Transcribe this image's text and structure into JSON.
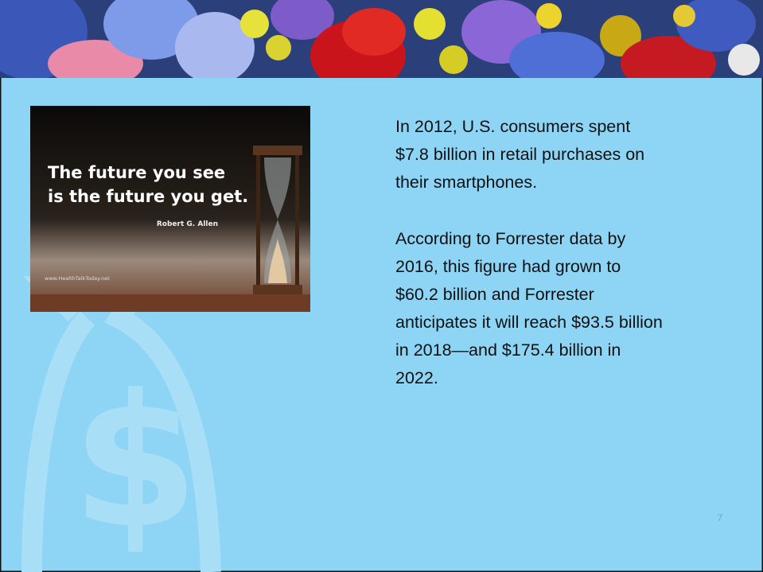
{
  "image": {
    "quote_lines": [
      "The future you see",
      "is the future you get."
    ],
    "author": "Robert G. Allen",
    "website": "www.HealthTalkToday.net"
  },
  "body": {
    "paragraphs": [
      [
        "In 2012, U.S. consumers spent",
        "$7.8 billion in retail purchases on",
        "their smartphones."
      ],
      [
        "According to Forrester data by",
        "2016, this figure had grown to",
        "$60.2 billion and Forrester",
        "anticipates it will reach $93.5 billion",
        "in 2018—and $175.4 billion in",
        "2022."
      ]
    ]
  },
  "slide_number": 7
}
